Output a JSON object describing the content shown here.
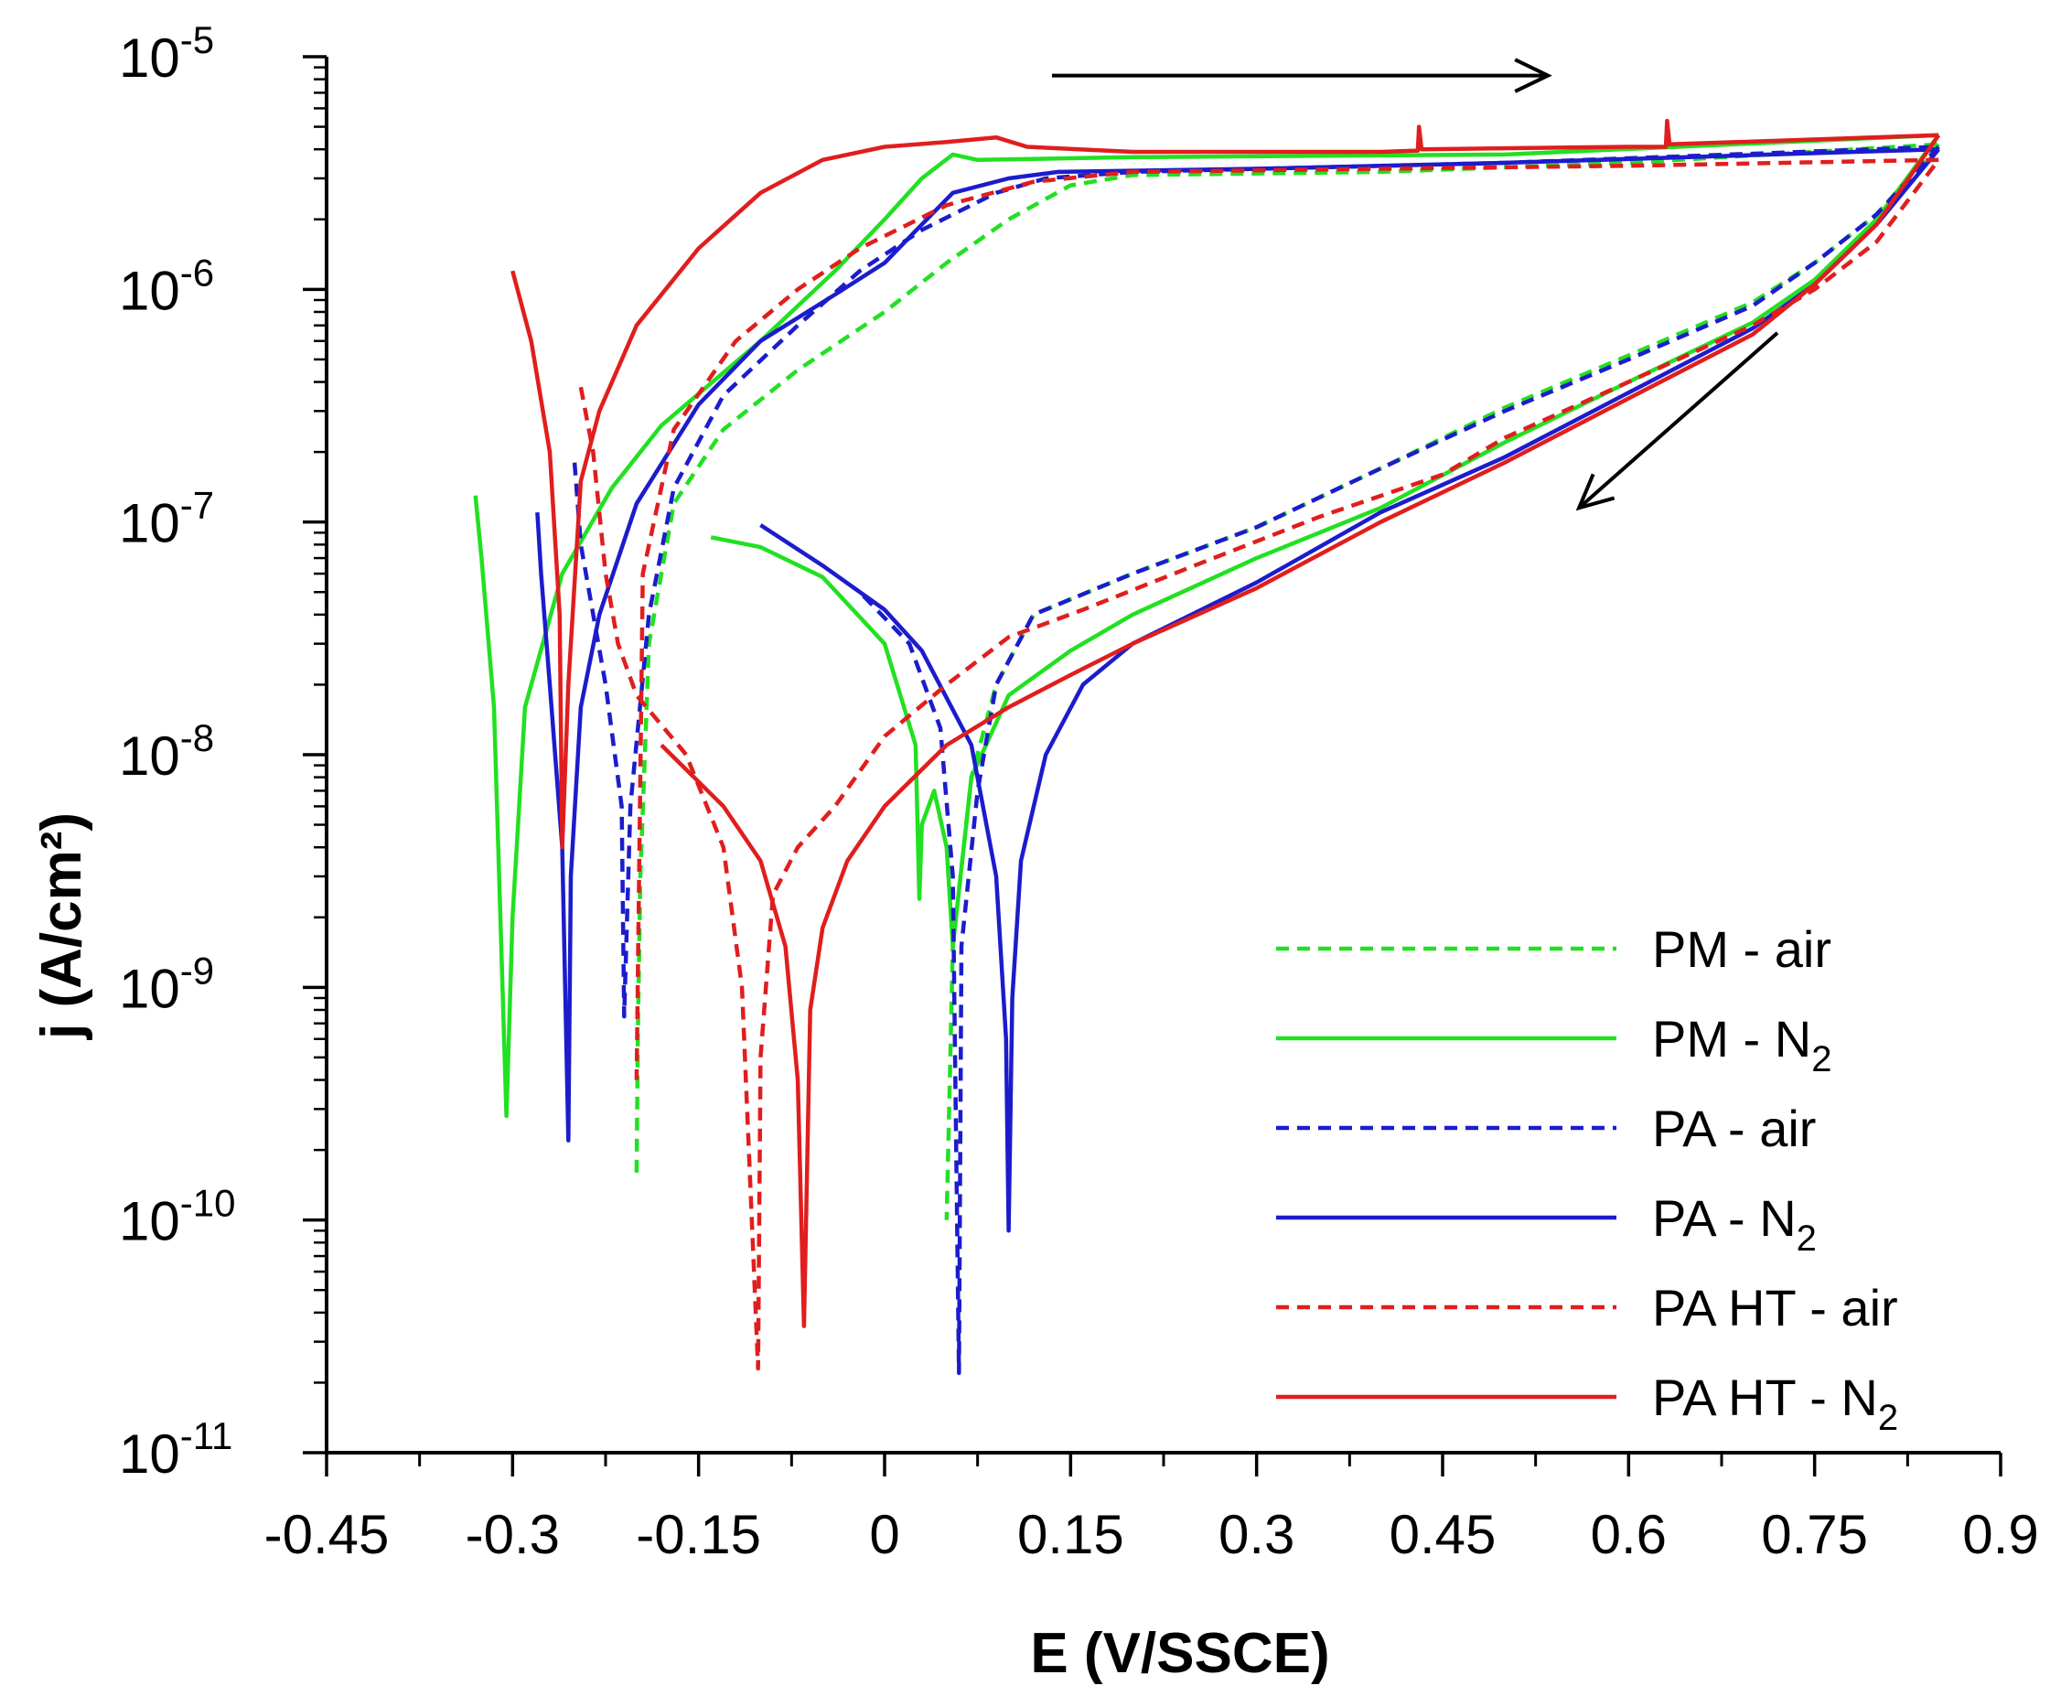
{
  "chart_data": {
    "type": "line",
    "title": "",
    "xlabel": "E (V/SSCE)",
    "ylabel": "j (A/cm²)",
    "x_scale": "linear",
    "y_scale": "log",
    "xlim": [
      -0.45,
      0.9
    ],
    "ylim": [
      1e-11,
      1e-05
    ],
    "x_ticks": [
      -0.45,
      -0.3,
      -0.15,
      0,
      0.15,
      0.3,
      0.45,
      0.6,
      0.75,
      0.9
    ],
    "x_tick_labels": [
      "-0.45",
      "-0.3",
      "-0.15",
      "0",
      "0.15",
      "0.3",
      "0.45",
      "0.6",
      "0.75",
      "0.9"
    ],
    "y_ticks": [
      {
        "value": 1e-05,
        "base": "10",
        "exp": "-5"
      },
      {
        "value": 1e-06,
        "base": "10",
        "exp": "-6"
      },
      {
        "value": 1e-07,
        "base": "10",
        "exp": "-7"
      },
      {
        "value": 1e-08,
        "base": "10",
        "exp": "-8"
      },
      {
        "value": 1e-09,
        "base": "10",
        "exp": "-9"
      },
      {
        "value": 1e-10,
        "base": "10",
        "exp": "-10"
      },
      {
        "value": 1e-11,
        "base": "10",
        "exp": "-11"
      }
    ],
    "legend_position": "bottom-right",
    "annotations": [
      {
        "type": "arrow",
        "meaning": "forward scan direction",
        "from": [
          0.135,
          8.3e-06
        ],
        "to": [
          0.535,
          8.3e-06
        ]
      },
      {
        "type": "arrow",
        "meaning": "reverse scan direction",
        "from": [
          0.72,
          6.5e-07
        ],
        "to": [
          0.56,
          1.15e-07
        ]
      }
    ],
    "series": [
      {
        "name": "PM - air",
        "label_main": "PM - air",
        "label_sub": "",
        "color": "#22e022",
        "dash": "dashed",
        "forward": [
          [
            -0.2,
            1.6e-10
          ],
          [
            -0.199,
            6e-10
          ],
          [
            -0.197,
            3e-09
          ],
          [
            -0.19,
            3e-08
          ],
          [
            -0.17,
            1.2e-07
          ],
          [
            -0.13,
            2.5e-07
          ],
          [
            -0.07,
            4.5e-07
          ],
          [
            0.0,
            8e-07
          ],
          [
            0.05,
            1.3e-06
          ],
          [
            0.1,
            2e-06
          ],
          [
            0.15,
            2.8e-06
          ],
          [
            0.2,
            3.1e-06
          ],
          [
            0.4,
            3.2e-06
          ],
          [
            0.6,
            3.5e-06
          ],
          [
            0.85,
            4.2e-06
          ]
        ],
        "reverse": [
          [
            0.85,
            4.2e-06
          ],
          [
            0.8,
            2.1e-06
          ],
          [
            0.75,
            1.3e-06
          ],
          [
            0.7,
            8.8e-07
          ],
          [
            0.6,
            5.2e-07
          ],
          [
            0.5,
            3.1e-07
          ],
          [
            0.4,
            1.7e-07
          ],
          [
            0.3,
            9.5e-08
          ],
          [
            0.2,
            6e-08
          ],
          [
            0.12,
            4e-08
          ],
          [
            0.09,
            2e-08
          ],
          [
            0.07,
            8e-09
          ],
          [
            0.055,
            1.5e-09
          ],
          [
            0.05,
            1e-10
          ]
        ]
      },
      {
        "name": "PM - N2",
        "label_main": "PM - N",
        "label_sub": "2",
        "color": "#22e022",
        "dash": "solid",
        "forward": [
          [
            -0.33,
            1.3e-07
          ],
          [
            -0.325,
            7e-08
          ],
          [
            -0.315,
            1.6e-08
          ],
          [
            -0.305,
            2.8e-10
          ],
          [
            -0.3,
            2e-09
          ],
          [
            -0.29,
            1.6e-08
          ],
          [
            -0.26,
            6e-08
          ],
          [
            -0.22,
            1.4e-07
          ],
          [
            -0.18,
            2.6e-07
          ],
          [
            -0.1,
            6e-07
          ],
          [
            -0.04,
            1.2e-06
          ],
          [
            0.0,
            2e-06
          ],
          [
            0.03,
            3e-06
          ],
          [
            0.055,
            3.8e-06
          ],
          [
            0.075,
            3.6e-06
          ],
          [
            0.2,
            3.7e-06
          ],
          [
            0.5,
            3.8e-06
          ],
          [
            0.85,
            4.6e-06
          ]
        ],
        "reverse": [
          [
            0.85,
            4.6e-06
          ],
          [
            0.8,
            2e-06
          ],
          [
            0.75,
            1.1e-06
          ],
          [
            0.7,
            7.2e-07
          ],
          [
            0.6,
            4e-07
          ],
          [
            0.5,
            2.2e-07
          ],
          [
            0.4,
            1.15e-07
          ],
          [
            0.3,
            7e-08
          ],
          [
            0.2,
            4e-08
          ],
          [
            0.15,
            2.8e-08
          ],
          [
            0.1,
            1.8e-08
          ],
          [
            0.07,
            8e-09
          ],
          [
            0.055,
            1.5e-09
          ],
          [
            0.05,
            4e-09
          ],
          [
            0.04,
            7e-09
          ],
          [
            0.03,
            5e-09
          ],
          [
            0.028,
            2.4e-09
          ],
          [
            0.025,
            1.1e-08
          ],
          [
            0.0,
            3e-08
          ],
          [
            -0.05,
            5.8e-08
          ],
          [
            -0.1,
            7.8e-08
          ],
          [
            -0.14,
            8.6e-08
          ]
        ]
      },
      {
        "name": "PA - air",
        "label_main": "PA - air",
        "label_sub": "",
        "color": "#1c1ccc",
        "dash": "dashed",
        "forward": [
          [
            -0.25,
            1.8e-07
          ],
          [
            -0.245,
            8e-08
          ],
          [
            -0.225,
            2e-08
          ],
          [
            -0.212,
            6e-09
          ],
          [
            -0.21,
            7.5e-10
          ],
          [
            -0.205,
            6e-09
          ],
          [
            -0.19,
            4e-08
          ],
          [
            -0.17,
            1.4e-07
          ],
          [
            -0.13,
            3.5e-07
          ],
          [
            -0.07,
            7e-07
          ],
          [
            -0.02,
            1.2e-06
          ],
          [
            0.03,
            1.8e-06
          ],
          [
            0.09,
            2.6e-06
          ],
          [
            0.13,
            3e-06
          ],
          [
            0.2,
            3.2e-06
          ],
          [
            0.5,
            3.5e-06
          ],
          [
            0.85,
            4.1e-06
          ]
        ],
        "reverse": [
          [
            0.85,
            4.1e-06
          ],
          [
            0.8,
            2.1e-06
          ],
          [
            0.75,
            1.3e-06
          ],
          [
            0.7,
            8.5e-07
          ],
          [
            0.6,
            5e-07
          ],
          [
            0.5,
            3e-07
          ],
          [
            0.4,
            1.7e-07
          ],
          [
            0.3,
            9.5e-08
          ],
          [
            0.2,
            6e-08
          ],
          [
            0.12,
            4e-08
          ],
          [
            0.09,
            2e-08
          ],
          [
            0.075,
            7e-09
          ],
          [
            0.062,
            1.5e-09
          ],
          [
            0.06,
            2.2e-11
          ],
          [
            0.055,
            3e-09
          ],
          [
            0.045,
            1.3e-08
          ],
          [
            0.02,
            3e-08
          ],
          [
            -0.02,
            5e-08
          ]
        ]
      },
      {
        "name": "PA - N2",
        "label_main": "PA - N",
        "label_sub": "2",
        "color": "#1c1ccc",
        "dash": "solid",
        "forward": [
          [
            -0.28,
            1.1e-07
          ],
          [
            -0.277,
            6e-08
          ],
          [
            -0.27,
            2e-08
          ],
          [
            -0.26,
            4e-09
          ],
          [
            -0.255,
            2.2e-10
          ],
          [
            -0.253,
            3e-09
          ],
          [
            -0.245,
            1.6e-08
          ],
          [
            -0.23,
            4e-08
          ],
          [
            -0.2,
            1.2e-07
          ],
          [
            -0.15,
            3.2e-07
          ],
          [
            -0.1,
            6e-07
          ],
          [
            -0.04,
            9.5e-07
          ],
          [
            0.0,
            1.3e-06
          ],
          [
            0.03,
            1.9e-06
          ],
          [
            0.055,
            2.6e-06
          ],
          [
            0.1,
            3e-06
          ],
          [
            0.14,
            3.2e-06
          ],
          [
            0.3,
            3.3e-06
          ],
          [
            0.5,
            3.5e-06
          ],
          [
            0.85,
            4e-06
          ]
        ],
        "reverse": [
          [
            0.85,
            4e-06
          ],
          [
            0.8,
            1.9e-06
          ],
          [
            0.75,
            1.05e-06
          ],
          [
            0.7,
            6.8e-07
          ],
          [
            0.6,
            3.6e-07
          ],
          [
            0.5,
            1.9e-07
          ],
          [
            0.4,
            1.1e-07
          ],
          [
            0.3,
            5.5e-08
          ],
          [
            0.2,
            3e-08
          ],
          [
            0.16,
            2e-08
          ],
          [
            0.13,
            1e-08
          ],
          [
            0.11,
            3.5e-09
          ],
          [
            0.103,
            9e-10
          ],
          [
            0.1,
            9e-11
          ],
          [
            0.098,
            6e-10
          ],
          [
            0.09,
            3e-09
          ],
          [
            0.07,
            1.1e-08
          ],
          [
            0.03,
            2.8e-08
          ],
          [
            0.0,
            4.2e-08
          ],
          [
            -0.05,
            6.5e-08
          ],
          [
            -0.1,
            9.7e-08
          ]
        ]
      },
      {
        "name": "PA HT - air",
        "label_main": "PA HT - air",
        "label_sub": "",
        "color": "#e01e1e",
        "dash": "dashed",
        "forward": [
          [
            -0.245,
            3.8e-07
          ],
          [
            -0.235,
            2e-07
          ],
          [
            -0.225,
            6e-08
          ],
          [
            -0.215,
            3e-08
          ],
          [
            -0.2,
            1.8e-08
          ],
          [
            -0.16,
            1e-08
          ],
          [
            -0.13,
            4e-09
          ],
          [
            -0.115,
            1e-09
          ],
          [
            -0.102,
            2.3e-11
          ],
          [
            -0.1,
            5e-10
          ],
          [
            -0.09,
            2.5e-09
          ],
          [
            -0.07,
            4e-09
          ],
          [
            -0.04,
            6e-09
          ],
          [
            0.0,
            1.2e-08
          ],
          [
            0.05,
            2e-08
          ],
          [
            0.1,
            3.2e-08
          ],
          [
            0.16,
            4.2e-08
          ],
          [
            0.25,
            6.5e-08
          ],
          [
            0.35,
            1.05e-07
          ],
          [
            0.45,
            1.6e-07
          ],
          [
            0.5,
            2.3e-07
          ],
          [
            0.6,
            4e-07
          ],
          [
            0.7,
            7e-07
          ],
          [
            0.75,
            1e-06
          ],
          [
            0.8,
            1.6e-06
          ],
          [
            0.85,
            3.6e-06
          ]
        ],
        "reverse": [
          [
            0.85,
            3.6e-06
          ],
          [
            0.6,
            3.4e-06
          ],
          [
            0.4,
            3.3e-06
          ],
          [
            0.2,
            3.2e-06
          ],
          [
            0.12,
            2.9e-06
          ],
          [
            0.05,
            2.3e-06
          ],
          [
            -0.02,
            1.5e-06
          ],
          [
            -0.07,
            1e-06
          ],
          [
            -0.12,
            6e-07
          ],
          [
            -0.17,
            2.5e-07
          ],
          [
            -0.195,
            6e-08
          ],
          [
            -0.2,
            4e-10
          ]
        ]
      },
      {
        "name": "PA HT - N2",
        "label_main": "PA HT - N",
        "label_sub": "2",
        "color": "#e01e1e",
        "dash": "solid",
        "forward": [
          [
            -0.3,
            1.2e-06
          ],
          [
            -0.285,
            6e-07
          ],
          [
            -0.27,
            2e-07
          ],
          [
            -0.262,
            4e-08
          ],
          [
            -0.26,
            4e-09
          ],
          [
            -0.255,
            2e-08
          ],
          [
            -0.245,
            1.5e-07
          ],
          [
            -0.23,
            3e-07
          ],
          [
            -0.2,
            7e-07
          ],
          [
            -0.15,
            1.5e-06
          ],
          [
            -0.1,
            2.6e-06
          ],
          [
            -0.05,
            3.6e-06
          ],
          [
            0.0,
            4.1e-06
          ],
          [
            0.05,
            4.3e-06
          ],
          [
            0.09,
            4.5e-06
          ],
          [
            0.115,
            4.1e-06
          ],
          [
            0.2,
            3.9e-06
          ],
          [
            0.4,
            3.9e-06
          ],
          [
            0.43,
            3.95e-06
          ],
          [
            0.431,
            5e-06
          ],
          [
            0.433,
            4e-06
          ],
          [
            0.6,
            4.1e-06
          ],
          [
            0.63,
            4.1e-06
          ],
          [
            0.631,
            5.3e-06
          ],
          [
            0.633,
            4.2e-06
          ],
          [
            0.85,
            4.6e-06
          ]
        ],
        "reverse": [
          [
            0.85,
            4.6e-06
          ],
          [
            0.8,
            1.9e-06
          ],
          [
            0.75,
            1.05e-06
          ],
          [
            0.7,
            6.4e-07
          ],
          [
            0.6,
            3.4e-07
          ],
          [
            0.5,
            1.8e-07
          ],
          [
            0.4,
            1e-07
          ],
          [
            0.3,
            5.2e-08
          ],
          [
            0.2,
            3e-08
          ],
          [
            0.15,
            2.2e-08
          ],
          [
            0.1,
            1.6e-08
          ],
          [
            0.05,
            1.1e-08
          ],
          [
            0.0,
            6e-09
          ],
          [
            -0.03,
            3.5e-09
          ],
          [
            -0.05,
            1.8e-09
          ],
          [
            -0.06,
            8e-10
          ],
          [
            -0.065,
            3.5e-11
          ],
          [
            -0.07,
            4e-10
          ],
          [
            -0.08,
            1.5e-09
          ],
          [
            -0.1,
            3.5e-09
          ],
          [
            -0.13,
            6e-09
          ],
          [
            -0.18,
            1.1e-08
          ]
        ]
      }
    ]
  }
}
